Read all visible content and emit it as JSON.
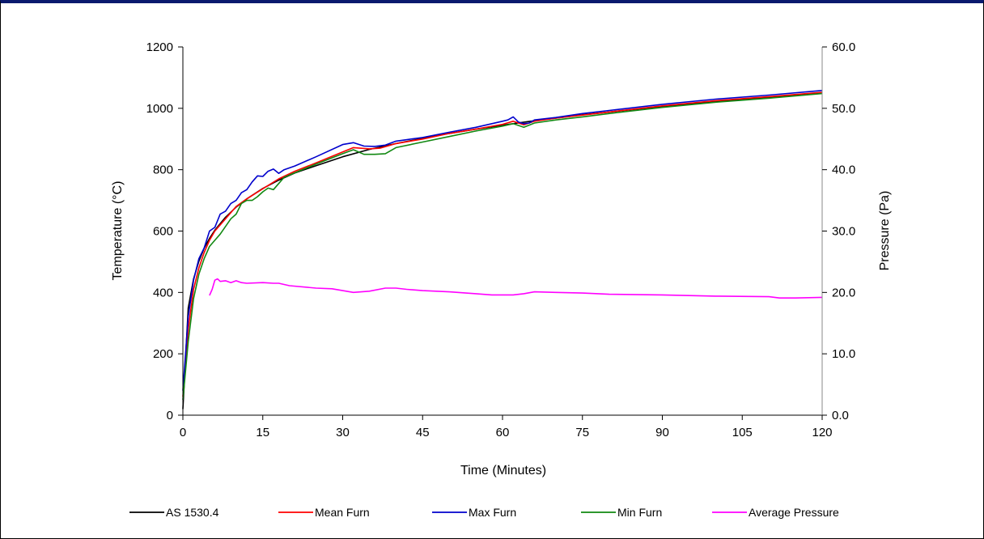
{
  "chart_data": {
    "type": "line",
    "xlabel": "Time (Minutes)",
    "ylabel": "Temperature (°C)",
    "y2label": "Pressure (Pa)",
    "xlim": [
      0,
      120
    ],
    "ylim": [
      0,
      1200
    ],
    "y2lim": [
      0,
      60
    ],
    "x_ticks": [
      "0",
      "15",
      "30",
      "45",
      "60",
      "75",
      "90",
      "105",
      "120"
    ],
    "y_ticks": [
      "0",
      "200",
      "400",
      "600",
      "800",
      "1000",
      "1200"
    ],
    "y2_ticks": [
      "0.0",
      "10.0",
      "20.0",
      "30.0",
      "40.0",
      "50.0",
      "60.0"
    ],
    "grid": false,
    "legend_position": "bottom",
    "series": [
      {
        "name": "AS 1530.4",
        "color": "#000000",
        "axis": "left",
        "x": [
          0,
          1,
          2,
          3,
          4,
          5,
          6,
          8,
          10,
          12,
          15,
          18,
          21,
          25,
          30,
          35,
          40,
          45,
          50,
          55,
          60,
          65,
          70,
          75,
          80,
          90,
          100,
          110,
          120
        ],
        "y": [
          20,
          349,
          444,
          502,
          544,
          576,
          603,
          645,
          678,
          705,
          739,
          766,
          789,
          813,
          842,
          866,
          885,
          902,
          918,
          932,
          945,
          957,
          968,
          979,
          988,
          1006,
          1022,
          1036,
          1049
        ]
      },
      {
        "name": "Mean Furn",
        "color": "#ff0000",
        "axis": "left",
        "x": [
          0,
          1,
          2,
          3,
          4,
          5,
          6,
          8,
          10,
          12,
          15,
          18,
          21,
          25,
          30,
          32,
          35,
          37,
          40,
          45,
          50,
          55,
          60,
          62,
          64,
          66,
          70,
          75,
          80,
          90,
          100,
          110,
          120
        ],
        "y": [
          60,
          280,
          410,
          480,
          530,
          570,
          600,
          640,
          680,
          705,
          738,
          770,
          795,
          822,
          858,
          872,
          868,
          870,
          885,
          900,
          918,
          932,
          948,
          958,
          946,
          958,
          968,
          978,
          988,
          1008,
          1025,
          1038,
          1052
        ]
      },
      {
        "name": "Max Furn",
        "color": "#0000cc",
        "axis": "left",
        "x": [
          0,
          1,
          2,
          3,
          4,
          5,
          6,
          7,
          8,
          9,
          10,
          11,
          12,
          13,
          14,
          15,
          16,
          17,
          18,
          19,
          21,
          25,
          30,
          32,
          34,
          36,
          38,
          40,
          45,
          50,
          55,
          60,
          61,
          62,
          63,
          64,
          65,
          66,
          70,
          75,
          80,
          90,
          100,
          110,
          120
        ],
        "y": [
          80,
          320,
          440,
          510,
          545,
          600,
          612,
          655,
          665,
          690,
          700,
          725,
          735,
          760,
          780,
          778,
          795,
          802,
          788,
          800,
          812,
          842,
          882,
          888,
          877,
          876,
          880,
          893,
          905,
          922,
          938,
          958,
          962,
          972,
          955,
          950,
          952,
          962,
          970,
          983,
          993,
          1013,
          1030,
          1043,
          1058
        ]
      },
      {
        "name": "Min Furn",
        "color": "#118811",
        "axis": "left",
        "x": [
          0,
          1,
          2,
          3,
          4,
          5,
          6,
          7,
          8,
          9,
          10,
          11,
          12,
          13,
          14,
          15,
          16,
          17,
          18,
          19,
          21,
          25,
          30,
          32,
          34,
          36,
          38,
          40,
          45,
          50,
          55,
          60,
          62,
          64,
          66,
          70,
          75,
          80,
          90,
          100,
          110,
          120
        ],
        "y": [
          50,
          240,
          380,
          460,
          510,
          550,
          570,
          590,
          615,
          640,
          655,
          690,
          700,
          700,
          712,
          728,
          740,
          735,
          755,
          775,
          790,
          818,
          852,
          865,
          850,
          850,
          852,
          872,
          890,
          908,
          926,
          942,
          950,
          938,
          952,
          962,
          972,
          983,
          1003,
          1020,
          1033,
          1048
        ]
      },
      {
        "name": "Average Pressure",
        "color": "#ff00ff",
        "axis": "right",
        "x": [
          5,
          5.5,
          6,
          6.5,
          7,
          8,
          9,
          10,
          11,
          12,
          15,
          17,
          18,
          20,
          25,
          28,
          30,
          32,
          35,
          38,
          40,
          42,
          45,
          50,
          55,
          58,
          60,
          62,
          64,
          66,
          70,
          75,
          80,
          90,
          100,
          110,
          112,
          115,
          120
        ],
        "y": [
          19.5,
          20.5,
          22.0,
          22.2,
          21.8,
          21.9,
          21.6,
          21.9,
          21.6,
          21.5,
          21.6,
          21.5,
          21.5,
          21.1,
          20.7,
          20.6,
          20.3,
          20.0,
          20.2,
          20.7,
          20.7,
          20.5,
          20.3,
          20.1,
          19.8,
          19.6,
          19.6,
          19.6,
          19.8,
          20.1,
          20.0,
          19.9,
          19.7,
          19.6,
          19.4,
          19.3,
          19.1,
          19.1,
          19.2
        ]
      }
    ]
  }
}
